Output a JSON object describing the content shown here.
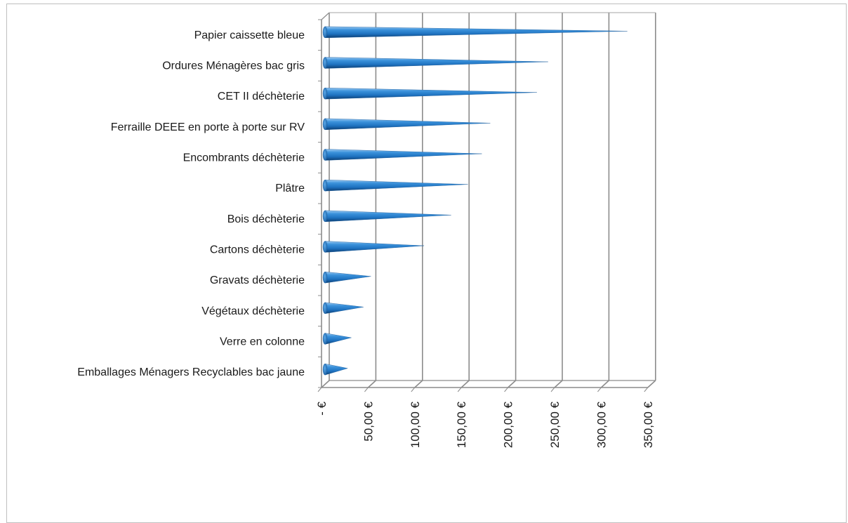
{
  "chart_data": {
    "type": "bar",
    "orientation": "horizontal",
    "shape": "cone",
    "categories": [
      "Papier caissette bleue",
      "Ordures Ménagères bac gris",
      "CET II déchèterie",
      "Ferraille DEEE en porte à porte sur RV",
      "Encombrants déchèterie",
      "Plâtre",
      "Bois déchèterie",
      "Cartons déchèterie",
      "Gravats déchèterie",
      "Végétaux déchèterie",
      "Verre en colonne",
      "Emballages Ménagers Recyclables bac jaune"
    ],
    "values": [
      325,
      240,
      228,
      178,
      169,
      154,
      136,
      107,
      50,
      42,
      29,
      25
    ],
    "xlim": [
      0,
      350
    ],
    "tick_labels": [
      "- €",
      "50,00 €",
      "100,00 €",
      "150,00 €",
      "200,00 €",
      "250,00 €",
      "300,00 €",
      "350,00 €"
    ],
    "grid": true,
    "legend": "none",
    "bar_color": "#2e86d4",
    "title": "",
    "xlabel": "",
    "ylabel": ""
  }
}
